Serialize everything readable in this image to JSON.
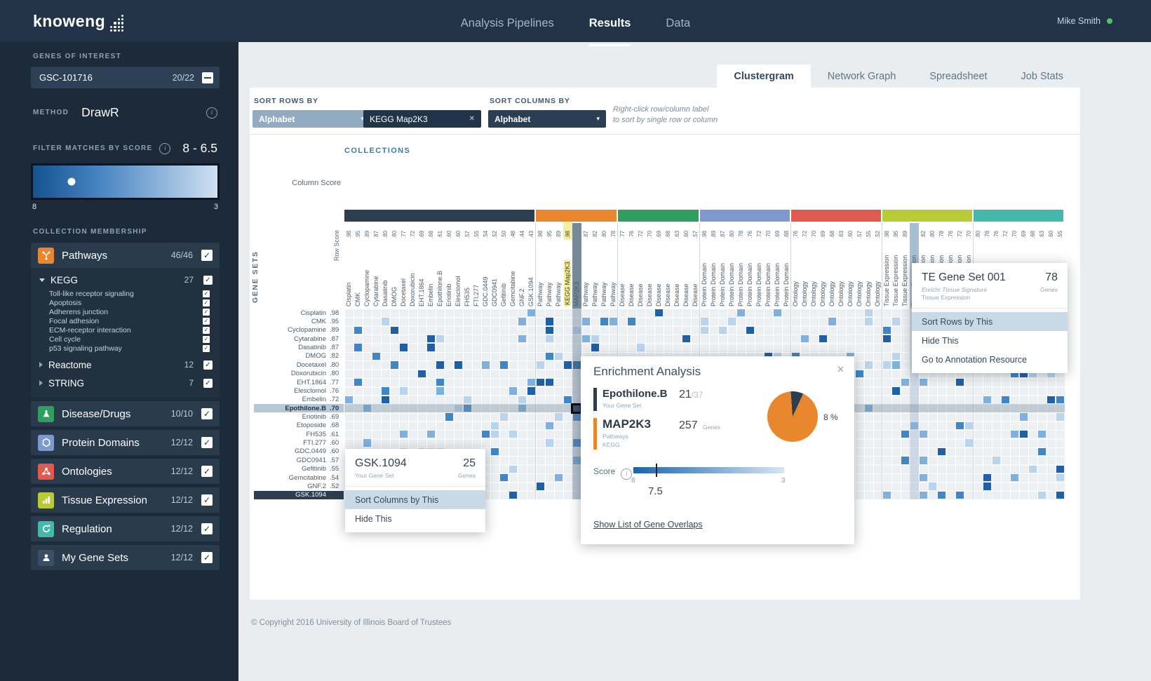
{
  "navbar": {
    "logo": "knoweng",
    "items": [
      {
        "label": "Analysis Pipelines"
      },
      {
        "label": "Results"
      },
      {
        "label": "Data"
      }
    ],
    "active_item": "Results",
    "user": "Mike Smith"
  },
  "sidebar": {
    "genes_of_interest_label": "GENES OF INTEREST",
    "gene_set_card": {
      "name": "GSC-101716",
      "count": "20/22"
    },
    "method": {
      "label": "METHOD",
      "value": "DrawR"
    },
    "filter": {
      "label": "FILTER MATCHES BY SCORE",
      "value": "8 - 6.5",
      "scale_min": "8",
      "scale_max": "3"
    },
    "collection_membership_label": "COLLECTION MEMBERSHIP",
    "collections": [
      {
        "label": "Pathways",
        "count": "46/46",
        "color": "#e8872e"
      },
      {
        "label": "Disease/Drugs",
        "count": "10/10",
        "color": "#2f9e5f"
      },
      {
        "label": "Protein Domains",
        "count": "12/12",
        "color": "#7d99ce"
      },
      {
        "label": "Ontologies",
        "count": "12/12",
        "color": "#e05a4e"
      },
      {
        "label": "Tissue Expression",
        "count": "12/12",
        "color": "#b8cb37"
      },
      {
        "label": "Regulation",
        "count": "12/12",
        "color": "#45b8ac"
      },
      {
        "label": "My Gene Sets",
        "count": "12/12",
        "color": "#3a4f63"
      }
    ],
    "pathways_children": {
      "kegg": {
        "label": "KEGG",
        "count": "27",
        "items": [
          "Toll-like receptor signaling",
          "Apoptosis",
          "Adherens junction",
          "Focal adhesion",
          "ECM-receptor interaction",
          "Cell cycle",
          "p53 signaling pathway"
        ]
      },
      "reactome": {
        "label": "Reactome",
        "count": "12"
      },
      "string": {
        "label": "STRING",
        "count": "7"
      }
    }
  },
  "tabs": [
    {
      "label": "Clustergram",
      "active": true
    },
    {
      "label": "Network Graph",
      "active": false
    },
    {
      "label": "Spreadsheet",
      "active": false
    },
    {
      "label": "Job Stats",
      "active": false
    }
  ],
  "toolbar": {
    "sort_rows_label": "SORT ROWS BY",
    "sort_rows_value": "Alphabet",
    "sort_chip": "KEGG Map2K3",
    "sort_cols_label": "SORT COLUMNS BY",
    "sort_cols_value": "Alphabet",
    "hint_line1": "Right-click row/column label",
    "hint_line2": "to sort by single row or column"
  },
  "clustergram": {
    "collections_label": "COLLECTIONS",
    "column_score_label": "Column Score",
    "row_score_label": "Row Score",
    "gene_sets_label": "GENE SETS",
    "groups": [
      {
        "key": "my-gene-sets",
        "color": "#2c3e50",
        "columns": [
          [
            "Cisplatin",
            ".98"
          ],
          [
            "CMK",
            ".95"
          ],
          [
            "Cyclopamine",
            ".89"
          ],
          [
            "Cytarabine",
            ".87"
          ],
          [
            "Dasatinib",
            ".80"
          ],
          [
            "DMOG",
            ".80"
          ],
          [
            "Docetaxel",
            ".77"
          ],
          [
            "Doxorubicin",
            ".72"
          ],
          [
            "EHT.1864",
            ".69"
          ],
          [
            "Embelin",
            ".68"
          ],
          [
            "Epothilone.B",
            ".61"
          ],
          [
            "Eriotinib",
            ".60"
          ],
          [
            "Elesclomol",
            ".60"
          ],
          [
            "FH535",
            ".57"
          ],
          [
            "FTI.277",
            ".55"
          ],
          [
            "GDC.0449",
            ".54"
          ],
          [
            "GDC0941",
            ".52"
          ],
          [
            "Gefitinib",
            ".50"
          ],
          [
            "Gemcitabine",
            ".48"
          ],
          [
            "GNF.2",
            ".44"
          ],
          [
            "GSK.1094",
            ".43"
          ]
        ]
      },
      {
        "key": "pathways",
        "color": "#e8872e",
        "columns": [
          [
            "Pathway",
            ".98"
          ],
          [
            "Pathway",
            ".95"
          ],
          [
            "Pathway",
            ".89"
          ],
          [
            "KEGG Map2K3",
            ".98"
          ],
          [
            "MAP2K3",
            ".95"
          ],
          [
            "Pathway",
            ".87"
          ],
          [
            "Pathway",
            ".82"
          ],
          [
            "Pathway",
            ".80"
          ],
          [
            "Pathway",
            ".78"
          ]
        ]
      },
      {
        "key": "disease-drugs",
        "color": "#2f9e5f",
        "columns": [
          [
            "Disease",
            ".77"
          ],
          [
            "Disease",
            ".76"
          ],
          [
            "Disease",
            ".72"
          ],
          [
            "Disease",
            ".70"
          ],
          [
            "Disease",
            ".69"
          ],
          [
            "Disease",
            ".68"
          ],
          [
            "Disease",
            ".63"
          ],
          [
            "Disease",
            ".60"
          ],
          [
            "Disease",
            ".57"
          ]
        ]
      },
      {
        "key": "protein-domains",
        "color": "#7d99ce",
        "columns": [
          [
            "Protein Domain",
            ".98"
          ],
          [
            "Protein Domain",
            ".89"
          ],
          [
            "Protein Domain",
            ".87"
          ],
          [
            "Protein Domain",
            ".80"
          ],
          [
            "Protein Domain",
            ".78"
          ],
          [
            "Protein Domain",
            ".76"
          ],
          [
            "Protein Domain",
            ".72"
          ],
          [
            "Protein Domain",
            ".70"
          ],
          [
            "Protein Domain",
            ".69"
          ],
          [
            "Protein Domain",
            ".68"
          ]
        ]
      },
      {
        "key": "ontologies",
        "color": "#e05a4e",
        "columns": [
          [
            "Ontology",
            ".76"
          ],
          [
            "Ontology",
            ".72"
          ],
          [
            "Ontology",
            ".70"
          ],
          [
            "Ontology",
            ".69"
          ],
          [
            "Ontology",
            ".68"
          ],
          [
            "Ontology",
            ".63"
          ],
          [
            "Ontology",
            ".60"
          ],
          [
            "Ontology",
            ".57"
          ],
          [
            "Ontology",
            ".55"
          ],
          [
            "Ontology",
            ".52"
          ]
        ]
      },
      {
        "key": "tissue-expression",
        "color": "#b8cb37",
        "columns": [
          [
            "Tissue Expression",
            ".98"
          ],
          [
            "Tissue Expression",
            ".95"
          ],
          [
            "Tissue Expression",
            ".89"
          ],
          [
            "Tissue Expression",
            ".87"
          ],
          [
            "Tissue Expression",
            ".82"
          ],
          [
            "Tissue Expression",
            ".80"
          ],
          [
            "Tissue Expression",
            ".78"
          ],
          [
            "Tissue Expression",
            ".76"
          ],
          [
            "Tissue Expression",
            ".72"
          ],
          [
            "Tissue Expression",
            ".70"
          ]
        ]
      },
      {
        "key": "regulation",
        "color": "#45b8ac",
        "columns": [
          [
            "Regulation",
            ".80"
          ],
          [
            "Regulation",
            ".78"
          ],
          [
            "Regulation",
            ".76"
          ],
          [
            "Regulation",
            ".72"
          ],
          [
            "Regulation",
            ".70"
          ],
          [
            "Regulation",
            ".69"
          ],
          [
            "Regulation",
            ".68"
          ],
          [
            "Regulation",
            ".63"
          ],
          [
            "Regulation",
            ".60"
          ],
          [
            "Regulation",
            ".55"
          ]
        ]
      }
    ],
    "rows": [
      [
        "Cisplatin",
        ".98"
      ],
      [
        "CMK",
        ".95"
      ],
      [
        "Cyclopamine",
        ".89"
      ],
      [
        "Cytarabine",
        ".87"
      ],
      [
        "Dasatinib",
        ".87"
      ],
      [
        "DMOG",
        ".82"
      ],
      [
        "Docetaxel",
        ".80"
      ],
      [
        "Doxorubicin",
        ".80"
      ],
      [
        "EHT.1864",
        ".77"
      ],
      [
        "Elesclomol",
        ".76"
      ],
      [
        "Embelin",
        ".72"
      ],
      [
        "Epothilone.B",
        ".70",
        "selected"
      ],
      [
        "Eriotinib",
        ".69"
      ],
      [
        "Etoposide",
        ".68"
      ],
      [
        "FH535",
        ".61"
      ],
      [
        "FTI.277",
        ".60"
      ],
      [
        "GDC.0449",
        ".60"
      ],
      [
        "GDC0941",
        ".57"
      ],
      [
        "Gefitinib",
        ".55"
      ],
      [
        "Gemcitabine",
        ".54"
      ],
      [
        "GNF.2",
        ".52"
      ],
      [
        "GSK.1094",
        "",
        "context"
      ]
    ],
    "highlight": {
      "sorted_col": 24,
      "selected_col": 25,
      "selected_row": 11,
      "te_col": 62
    },
    "cells": {
      "seed": 20,
      "density": 0.13,
      "palette": [
        "#b9d5ee",
        "#7fb0de",
        "#3f86c8",
        "#1f5fa5"
      ]
    }
  },
  "popups": {
    "gene_set_context": {
      "title": "GSK.1094",
      "count": "25",
      "subtitle": "Your Gene Set",
      "count_label": "Genes",
      "menu": [
        "Sort Columns by This",
        "Hide This"
      ],
      "highlighted_index": 0
    },
    "te_context": {
      "title": "TE Gene Set 001",
      "count": "78",
      "subtitle1": "Enrichr Tissue Signature",
      "subtitle2": "Tissue Expression",
      "count_label": "Genes",
      "menu": [
        "Sort Rows by This",
        "Hide This",
        "Go to Annotation Resource"
      ],
      "highlighted_index": 0
    },
    "enrichment": {
      "title": "Enrichment Analysis",
      "row_gene_set": {
        "name": "Epothilone.B",
        "count": "21",
        "total": "/37",
        "subtitle": "Your Gene Set",
        "color": "#2c3e50"
      },
      "col_gene_set": {
        "name": "MAP2K3",
        "count": "257",
        "count_label": "Genes",
        "subtitle1": "Pathways",
        "subtitle2": "KEGG",
        "color": "#e8872e"
      },
      "pie": {
        "percent_label": "8 %",
        "fraction": 0.08,
        "colors": {
          "slice": "#2c3e50",
          "rest": "#e8872e"
        }
      },
      "score": {
        "label": "Score",
        "min": "8",
        "max": "3",
        "value": "7.5",
        "marker_pos": 0.15
      },
      "link": "Show List of Gene Overlaps"
    }
  },
  "footer": "© Copyright 2016 University of Illinois Board of Trustees"
}
